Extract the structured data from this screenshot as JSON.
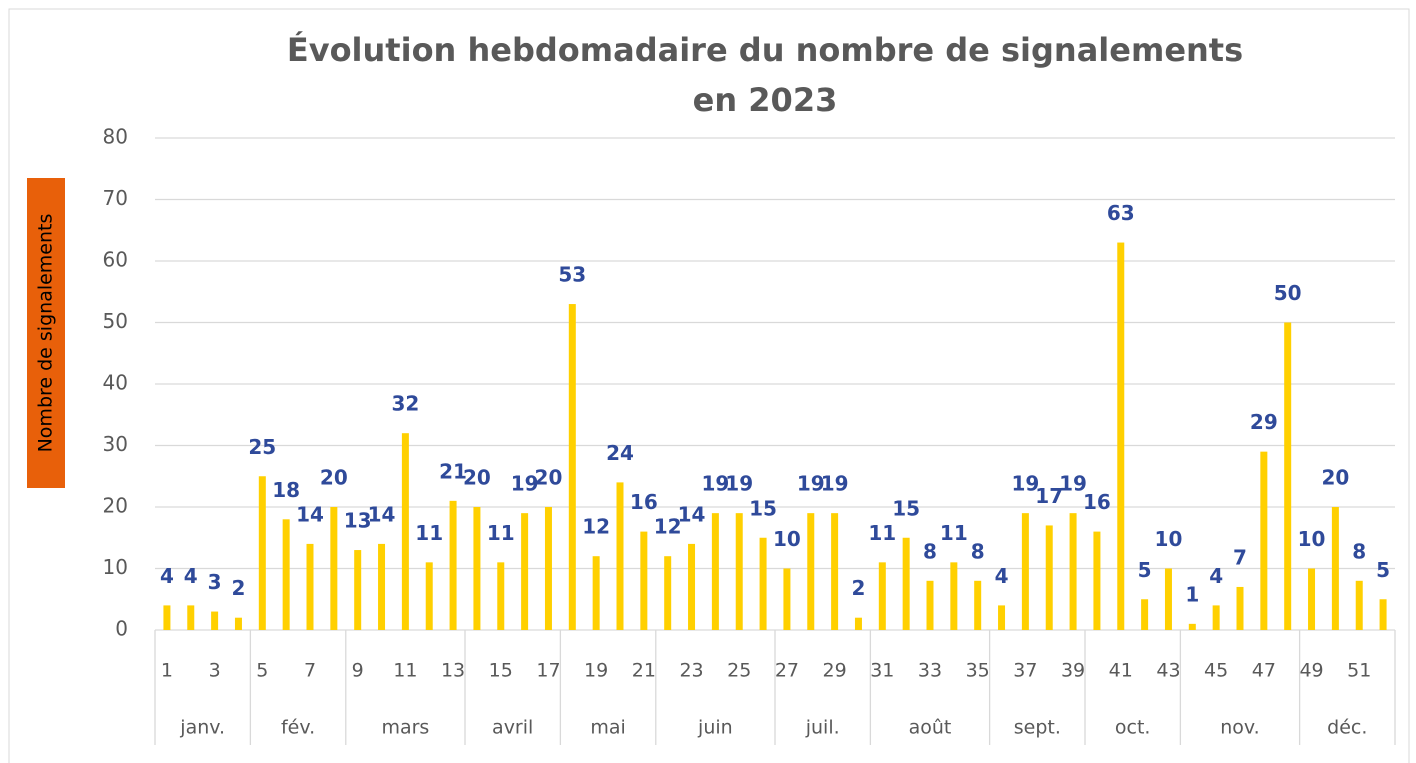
{
  "chart_data": {
    "type": "bar",
    "title": [
      "Évolution hebdomadaire du nombre de signalements",
      "en 2023"
    ],
    "y_label": "Nombre de signalements",
    "categories": [
      "1",
      null,
      "3",
      null,
      "5",
      null,
      "7",
      null,
      "9",
      null,
      "11",
      null,
      "13",
      null,
      "15",
      null,
      "17",
      null,
      "19",
      null,
      "21",
      null,
      "23",
      null,
      "25",
      null,
      "27",
      null,
      "29",
      null,
      "31",
      null,
      "33",
      null,
      "35",
      null,
      "37",
      null,
      "39",
      null,
      "41",
      null,
      "43",
      null,
      "45",
      null,
      "47",
      null,
      "49",
      null,
      "51",
      null
    ],
    "values": [
      4,
      4,
      3,
      2,
      25,
      18,
      14,
      20,
      13,
      14,
      32,
      11,
      21,
      20,
      11,
      19,
      20,
      53,
      12,
      24,
      16,
      12,
      14,
      19,
      19,
      15,
      10,
      19,
      19,
      2,
      11,
      15,
      8,
      11,
      8,
      4,
      19,
      17,
      19,
      16,
      63,
      5,
      10,
      1,
      4,
      7,
      29,
      50,
      10,
      20,
      8,
      5
    ],
    "month_groups": [
      {
        "label": "janv.",
        "weeks": 4
      },
      {
        "label": "fév.",
        "weeks": 4
      },
      {
        "label": "mars",
        "weeks": 5
      },
      {
        "label": "avril",
        "weeks": 4
      },
      {
        "label": "mai",
        "weeks": 4
      },
      {
        "label": "juin",
        "weeks": 5
      },
      {
        "label": "juil.",
        "weeks": 4
      },
      {
        "label": "août",
        "weeks": 5
      },
      {
        "label": "sept.",
        "weeks": 4
      },
      {
        "label": "oct.",
        "weeks": 4
      },
      {
        "label": "nov.",
        "weeks": 5
      },
      {
        "label": "déc.",
        "weeks": 4
      }
    ],
    "color": "#FFD000",
    "label_color": "#2F4A9A",
    "ylim": [
      0,
      80
    ],
    "yticks": [
      0,
      10,
      20,
      30,
      40,
      50,
      60,
      70,
      80
    ],
    "grid": true
  }
}
